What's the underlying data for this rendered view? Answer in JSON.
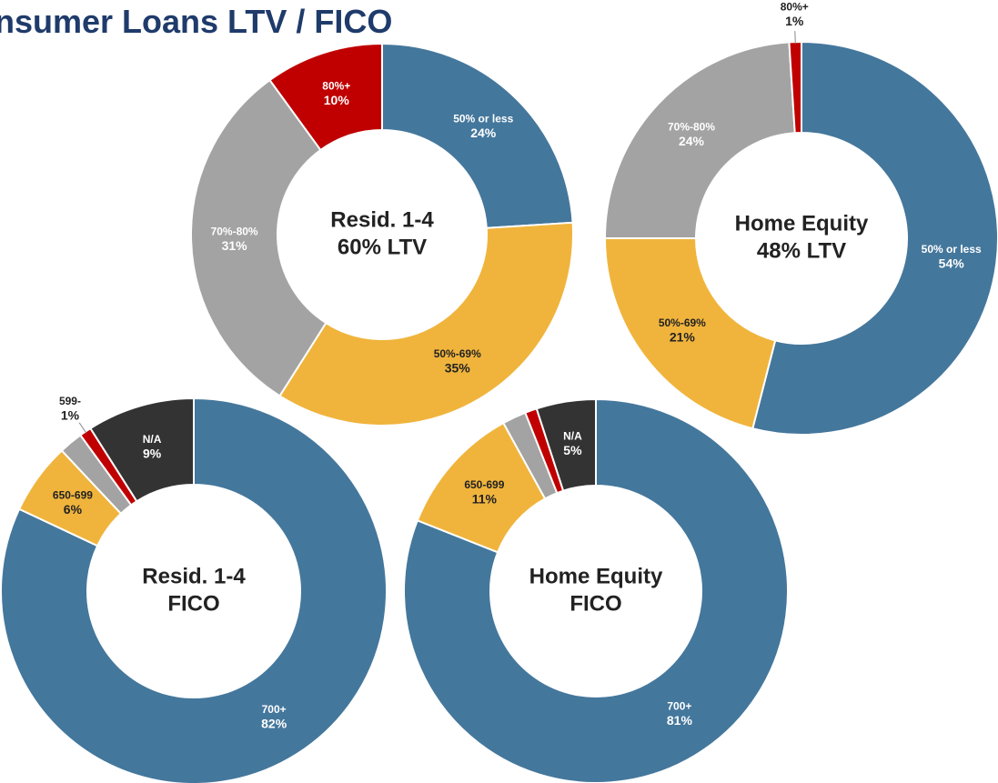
{
  "title": "nsumer Loans LTV / FICO",
  "chart_data": [
    {
      "type": "donut",
      "center_text": [
        "Resid. 1-4",
        "60% LTV"
      ],
      "categories": [
        "50% or less",
        "50%-69%",
        "70%-80%",
        "80%+"
      ],
      "values": [
        24,
        35,
        31,
        10
      ],
      "value_labels": [
        "24%",
        "35%",
        "31%",
        "10%"
      ],
      "colors": [
        "#44779c",
        "#f0b43c",
        "#a3a3a3",
        "#c00000"
      ]
    },
    {
      "type": "donut",
      "center_text": [
        "Home Equity",
        "48% LTV"
      ],
      "categories": [
        "50% or less",
        "50%-69%",
        "70%-80%",
        "80%+"
      ],
      "values": [
        54,
        21,
        24,
        1
      ],
      "value_labels": [
        "54%",
        "21%",
        "24%",
        "1%"
      ],
      "colors": [
        "#44779c",
        "#f0b43c",
        "#a3a3a3",
        "#c00000"
      ]
    },
    {
      "type": "donut",
      "center_text": [
        "Resid. 1-4",
        "FICO"
      ],
      "categories": [
        "700+",
        "650-699",
        null,
        "599-",
        "N/A"
      ],
      "values": [
        82,
        6,
        2,
        1,
        9
      ],
      "value_labels": [
        "82%",
        "6%",
        null,
        "1%",
        "9%"
      ],
      "colors": [
        "#44779c",
        "#f0b43c",
        "#a3a3a3",
        "#c00000",
        "#333333"
      ]
    },
    {
      "type": "donut",
      "center_text": [
        "Home Equity",
        "FICO"
      ],
      "categories": [
        "700+",
        "650-699",
        null,
        null,
        "N/A"
      ],
      "values": [
        81,
        11,
        2,
        1,
        5
      ],
      "value_labels": [
        "81%",
        "11%",
        null,
        null,
        "5%"
      ],
      "colors": [
        "#44779c",
        "#f0b43c",
        "#a3a3a3",
        "#c00000",
        "#333333"
      ]
    }
  ]
}
